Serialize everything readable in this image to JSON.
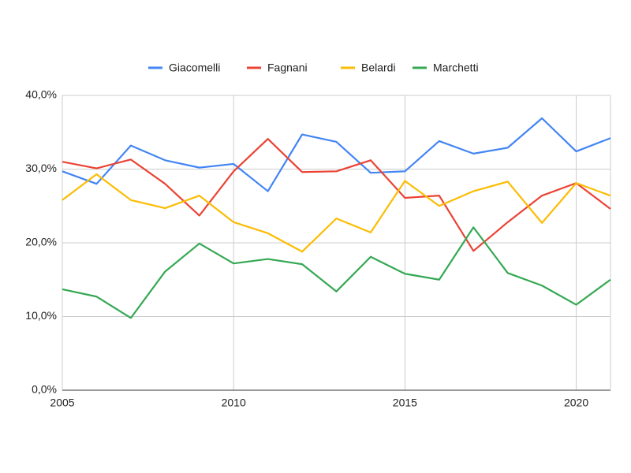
{
  "chart_data": {
    "type": "line",
    "x": [
      2005,
      2006,
      2007,
      2008,
      2009,
      2010,
      2011,
      2012,
      2013,
      2014,
      2015,
      2016,
      2017,
      2018,
      2019,
      2020,
      2021
    ],
    "series": [
      {
        "name": "Giacomelli",
        "color": "#4285f4",
        "values": [
          29.7,
          28.0,
          33.2,
          31.2,
          30.2,
          30.7,
          27.0,
          34.7,
          33.7,
          29.5,
          29.7,
          33.8,
          32.1,
          32.9,
          36.9,
          32.4,
          34.2
        ]
      },
      {
        "name": "Fagnani",
        "color": "#ea4335",
        "values": [
          31.0,
          30.1,
          31.3,
          28.0,
          23.7,
          29.7,
          34.1,
          29.6,
          29.7,
          31.2,
          26.1,
          26.4,
          18.9,
          22.8,
          26.4,
          28.1,
          24.6
        ]
      },
      {
        "name": "Belardi",
        "color": "#fbbc04",
        "values": [
          25.8,
          29.3,
          25.8,
          24.7,
          26.4,
          22.8,
          21.3,
          18.8,
          23.3,
          21.4,
          28.4,
          25.0,
          27.0,
          28.3,
          22.7,
          28.1,
          26.4
        ]
      },
      {
        "name": "Marchetti",
        "color": "#34a853",
        "values": [
          13.7,
          12.7,
          9.8,
          16.1,
          19.9,
          17.2,
          17.8,
          17.1,
          13.4,
          18.1,
          15.8,
          15.0,
          22.1,
          15.9,
          14.2,
          11.6,
          15.0
        ]
      }
    ],
    "xlim": [
      2005,
      2021
    ],
    "xticks": [
      2005,
      2010,
      2015,
      2020
    ],
    "ylim": [
      0,
      40
    ],
    "yticks": [
      {
        "value": 0,
        "label": "0,0%"
      },
      {
        "value": 10,
        "label": "10,0%"
      },
      {
        "value": 20,
        "label": "20,0%"
      },
      {
        "value": 30,
        "label": "30,0%"
      },
      {
        "value": 40,
        "label": "40,0%"
      }
    ],
    "grid": true,
    "legend": "top"
  }
}
